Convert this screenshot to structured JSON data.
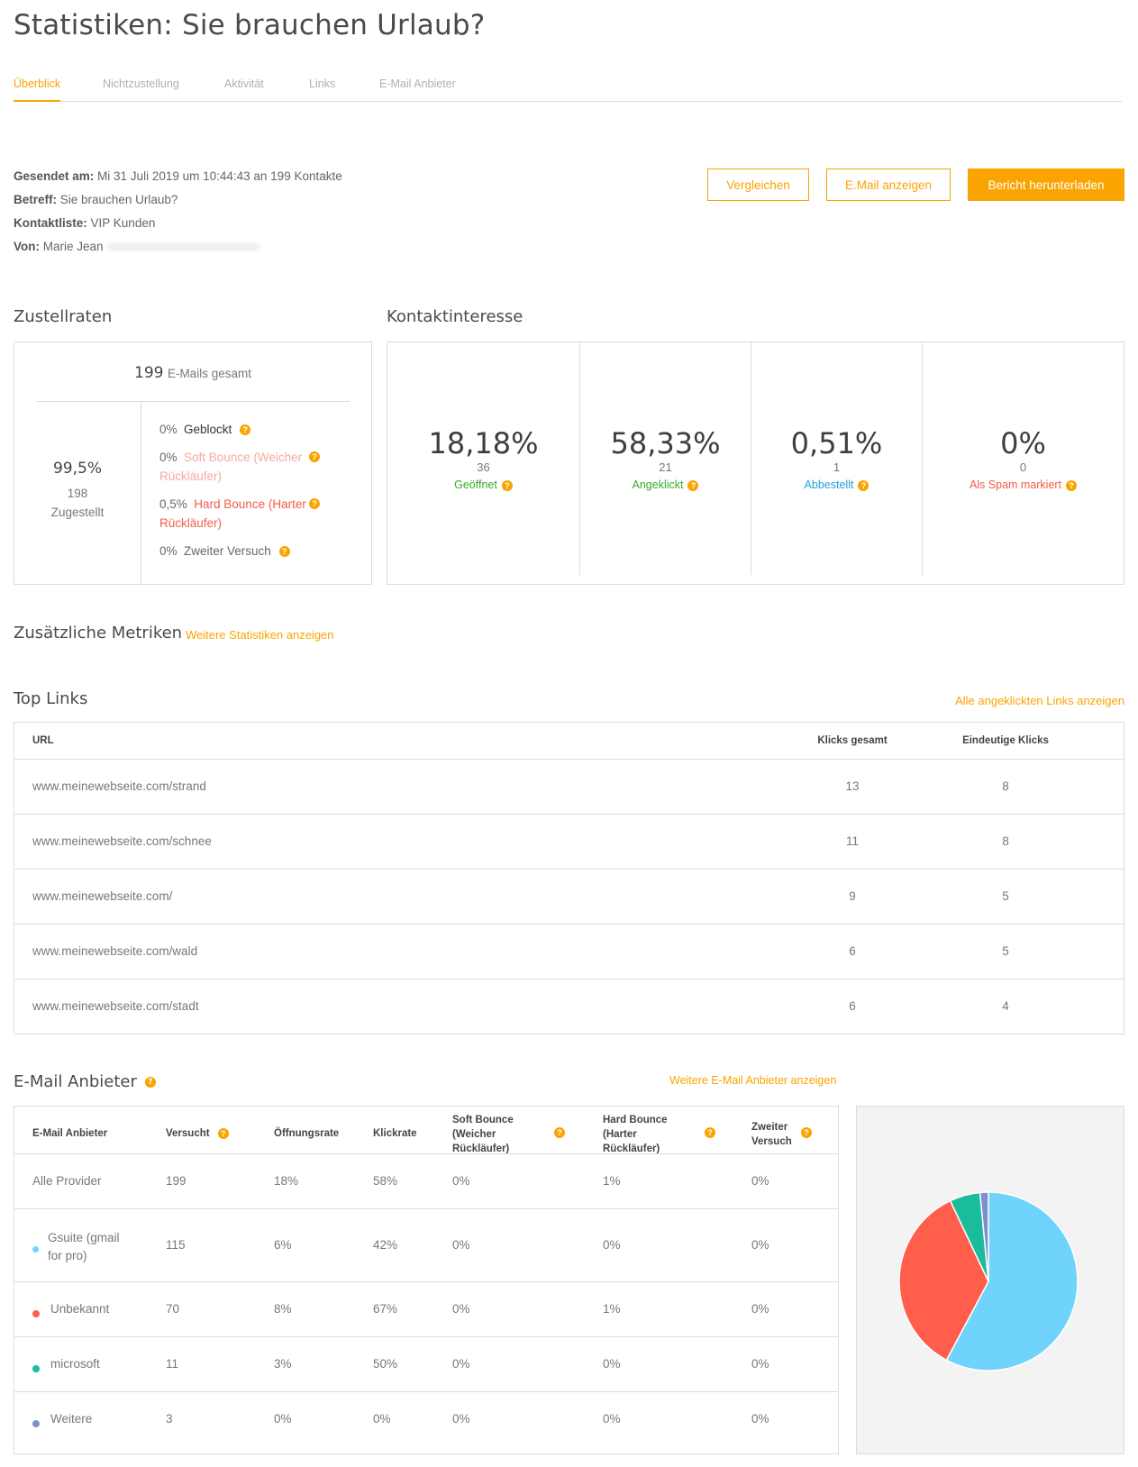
{
  "page_title": "Statistiken: Sie brauchen Urlaub?",
  "tabs": [
    {
      "label": "Überblick",
      "active": true
    },
    {
      "label": "Nichtzustellung",
      "active": false
    },
    {
      "label": "Aktivität",
      "active": false
    },
    {
      "label": "Links",
      "active": false
    },
    {
      "label": "E-Mail Anbieter",
      "active": false
    }
  ],
  "meta": {
    "sent_label": "Gesendet am:",
    "sent_value": "Mi 31 Juli 2019 um 10:44:43 an 199 Kontakte",
    "subject_label": "Betreff:",
    "subject_value": "Sie brauchen Urlaub?",
    "list_label": "Kontaktliste:",
    "list_value": "VIP Kunden",
    "from_label": "Von:",
    "from_value": "Marie Jean"
  },
  "buttons": {
    "compare": "Vergleichen",
    "show_email": "E.Mail anzeigen",
    "download": "Bericht herunterladen"
  },
  "zustellraten": {
    "title": "Zustellraten",
    "total_count": "199",
    "total_label": "E-Mails gesamt",
    "delivered_pct": "99,5%",
    "delivered_count": "198",
    "delivered_label": "Zugestellt",
    "blocked_pct": "0%",
    "blocked_label": "Geblockt",
    "soft_pct": "0%",
    "soft_label": "Soft Bounce (Weicher",
    "soft_label2": "Rückläufer)",
    "hard_pct": "0,5%",
    "hard_label": "Hard Bounce (Harter",
    "hard_label2": "Rückläufer)",
    "retry_pct": "0%",
    "retry_label": "Zweiter Versuch"
  },
  "kontaktinteresse": {
    "title": "Kontaktinteresse",
    "cells": [
      {
        "value": "18,18%",
        "count": "36",
        "label": "Geöffnet",
        "color": "#3aab2a"
      },
      {
        "value": "58,33%",
        "count": "21",
        "label": "Angeklickt",
        "color": "#3aab2a"
      },
      {
        "value": "0,51%",
        "count": "1",
        "label": "Abbestellt",
        "color": "#2a9fd6"
      },
      {
        "value": "0%",
        "count": "0",
        "label": "Als Spam markiert",
        "color": "#f25c4b"
      }
    ]
  },
  "additional": {
    "title": "Zusätzliche Metriken",
    "link": "Weitere Statistiken anzeigen"
  },
  "top_links": {
    "title": "Top Links",
    "link": "Alle angeklickten Links anzeigen",
    "headers": [
      "URL",
      "Klicks gesamt",
      "Eindeutige Klicks"
    ],
    "rows": [
      {
        "url": "www.meinewebseite.com/strand",
        "total": "13",
        "unique": "8"
      },
      {
        "url": "www.meinewebseite.com/schnee",
        "total": "11",
        "unique": "8"
      },
      {
        "url": "www.meinewebseite.com/",
        "total": "9",
        "unique": "5"
      },
      {
        "url": "www.meinewebseite.com/wald",
        "total": "6",
        "unique": "5"
      },
      {
        "url": "www.meinewebseite.com/stadt",
        "total": "6",
        "unique": "4"
      }
    ]
  },
  "providers": {
    "title": "E-Mail Anbieter",
    "link": "Weitere E-Mail Anbieter anzeigen",
    "headers": {
      "provider": "E-Mail Anbieter",
      "attempted": "Versucht",
      "open": "Öffnungsrate",
      "click": "Klickrate",
      "soft": "Soft Bounce (Weicher Rückläufer)",
      "hard": "Hard Bounce (Harter Rückläufer)",
      "retry": "Zweiter Versuch"
    },
    "rows": [
      {
        "name": "Alle Provider",
        "dot": "",
        "attempted": "199",
        "open": "18%",
        "click": "58%",
        "soft": "0%",
        "hard": "1%",
        "retry": "0%"
      },
      {
        "name": "Gsuite (gmail for pro)",
        "dot": "#6fd3fb",
        "attempted": "115",
        "open": "6%",
        "click": "42%",
        "soft": "0%",
        "hard": "0%",
        "retry": "0%"
      },
      {
        "name": "Unbekannt",
        "dot": "#ff5e4d",
        "attempted": "70",
        "open": "8%",
        "click": "67%",
        "soft": "0%",
        "hard": "1%",
        "retry": "0%"
      },
      {
        "name": "microsoft",
        "dot": "#1abc9c",
        "attempted": "11",
        "open": "3%",
        "click": "50%",
        "soft": "0%",
        "hard": "0%",
        "retry": "0%"
      },
      {
        "name": "Weitere",
        "dot": "#7b8fd1",
        "attempted": "3",
        "open": "0%",
        "click": "0%",
        "soft": "0%",
        "hard": "0%",
        "retry": "0%"
      }
    ]
  },
  "chart_data": {
    "type": "pie",
    "categories": [
      "Gsuite (gmail for pro)",
      "Unbekannt",
      "microsoft",
      "Weitere"
    ],
    "values": [
      115,
      70,
      11,
      3
    ],
    "colors": [
      "#6fd3fb",
      "#ff5e4d",
      "#1abc9c",
      "#7b8fd1"
    ]
  }
}
